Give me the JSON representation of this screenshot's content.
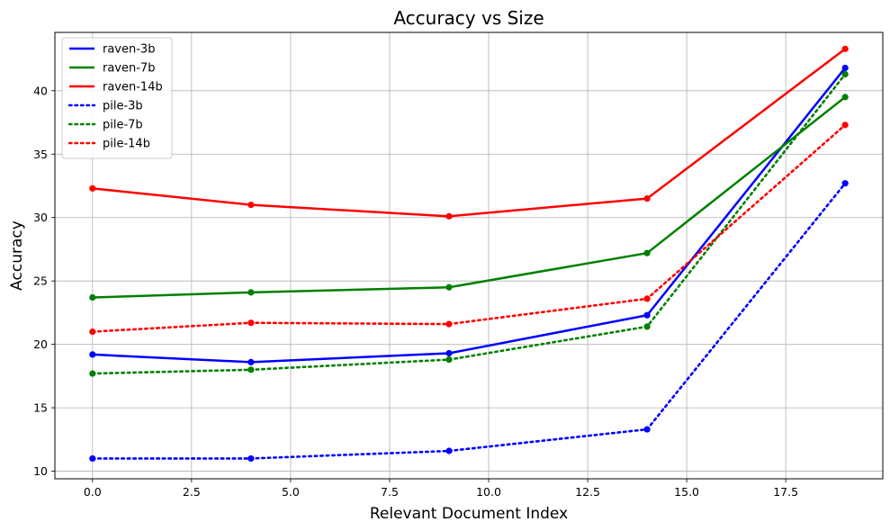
{
  "chart_data": {
    "type": "line",
    "title": "Accuracy vs Size",
    "xlabel": "Relevant Document Index",
    "ylabel": "Accuracy",
    "xlim": [
      -0.95,
      19.95
    ],
    "ylim": [
      9.4,
      44.6
    ],
    "xticks": [
      0.0,
      2.5,
      5.0,
      7.5,
      10.0,
      12.5,
      15.0,
      17.5
    ],
    "xtick_labels": [
      "0.0",
      "2.5",
      "5.0",
      "7.5",
      "10.0",
      "12.5",
      "15.0",
      "17.5"
    ],
    "yticks": [
      10,
      15,
      20,
      25,
      30,
      35,
      40
    ],
    "ytick_labels": [
      "10",
      "15",
      "20",
      "25",
      "30",
      "35",
      "40"
    ],
    "grid": true,
    "legend_position": "top-left",
    "x": [
      0,
      4,
      9,
      14,
      19
    ],
    "series": [
      {
        "name": "raven-3b",
        "color": "#0000ff",
        "style": "solid",
        "values": [
          19.2,
          18.6,
          19.3,
          22.3,
          41.8
        ]
      },
      {
        "name": "raven-7b",
        "color": "#008000",
        "style": "solid",
        "values": [
          23.7,
          24.1,
          24.5,
          27.2,
          39.5
        ]
      },
      {
        "name": "raven-14b",
        "color": "#ff0000",
        "style": "solid",
        "values": [
          32.3,
          31.0,
          30.1,
          31.5,
          43.3
        ]
      },
      {
        "name": "pile-3b",
        "color": "#0000ff",
        "style": "dotted",
        "values": [
          11.0,
          11.0,
          11.6,
          13.3,
          32.7
        ]
      },
      {
        "name": "pile-7b",
        "color": "#008000",
        "style": "dotted",
        "values": [
          17.7,
          18.0,
          18.8,
          21.4,
          41.3
        ]
      },
      {
        "name": "pile-14b",
        "color": "#ff0000",
        "style": "dotted",
        "values": [
          21.0,
          21.7,
          21.6,
          23.6,
          37.3
        ]
      }
    ]
  }
}
